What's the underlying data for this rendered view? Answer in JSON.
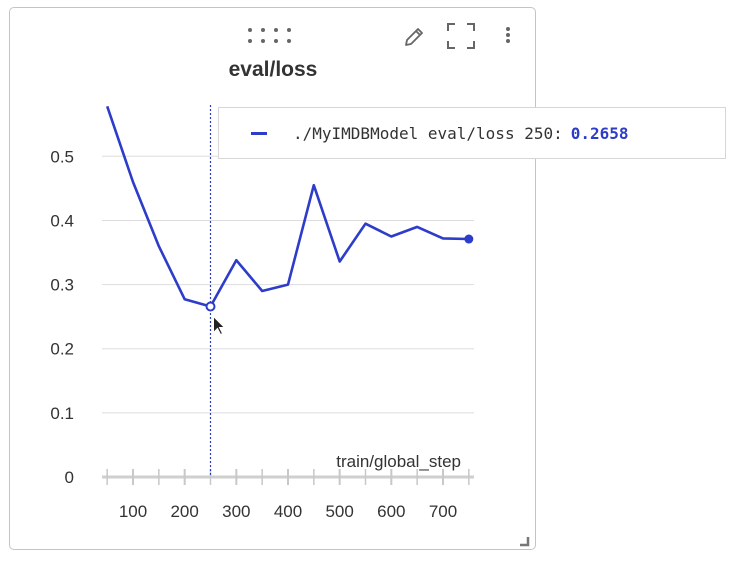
{
  "panel": {
    "icons": [
      "drag-handle-icon",
      "pencil-icon",
      "fullscreen-icon",
      "more-vert-icon",
      "resize-corner-icon"
    ]
  },
  "tooltip": {
    "run": "./MyIMDBModel",
    "tag": "eval/loss",
    "step": "250:",
    "value": "0.2658"
  },
  "colors": {
    "series": "#2d3cc9",
    "grid": "#dddddd",
    "axis_text": "#333333"
  },
  "chart_data": {
    "type": "line",
    "title": "eval/loss",
    "xlabel": "train/global_step",
    "ylabel": "",
    "xlim": [
      40,
      760
    ],
    "ylim": [
      0,
      0.58
    ],
    "x_ticks": [
      100,
      200,
      300,
      400,
      500,
      600,
      700
    ],
    "x_tick_labels": [
      "100",
      "200",
      "300",
      "400",
      "500",
      "600",
      "700"
    ],
    "y_ticks": [
      0,
      0.1,
      0.2,
      0.3,
      0.4,
      0.5
    ],
    "y_tick_labels": [
      "0",
      "0.1",
      "0.2",
      "0.3",
      "0.4",
      "0.5"
    ],
    "grid": true,
    "hover_step": 250,
    "series": [
      {
        "x": [
          50,
          100,
          150,
          200,
          250,
          300,
          350,
          400,
          450,
          500,
          550,
          600,
          650,
          700,
          750
        ],
        "y": [
          0.578,
          0.46,
          0.36,
          0.277,
          0.2658,
          0.338,
          0.29,
          0.3,
          0.455,
          0.336,
          0.395,
          0.375,
          0.39,
          0.372,
          0.371
        ]
      }
    ]
  }
}
